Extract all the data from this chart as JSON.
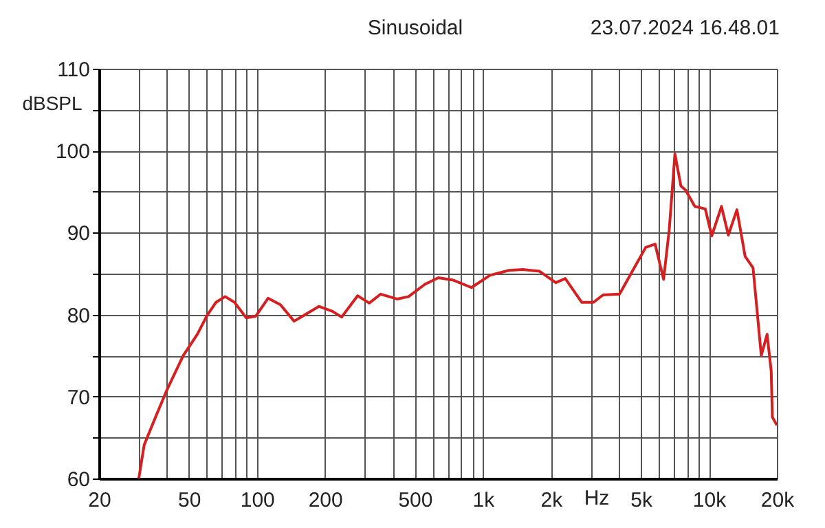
{
  "chart_data": {
    "type": "line",
    "title": "Sinusoidal",
    "xlabel": "Hz",
    "ylabel": "dBSPL",
    "annotations": [
      "23.07.2024 16.48.01"
    ],
    "log": "x",
    "grid": true,
    "marker": "none",
    "line_style": "solid",
    "xlim": [
      20,
      20000
    ],
    "xticks": [
      20,
      {
        "value": 30,
        "label": null
      },
      {
        "value": 40,
        "label": null
      },
      50,
      {
        "value": 60,
        "label": null
      },
      {
        "value": 70,
        "label": null
      },
      {
        "value": 80,
        "label": null
      },
      {
        "value": 90,
        "label": null
      },
      100,
      200,
      {
        "value": 300,
        "label": null
      },
      {
        "value": 400,
        "label": null
      },
      500,
      {
        "value": 600,
        "label": null
      },
      {
        "value": 700,
        "label": null
      },
      {
        "value": 800,
        "label": null
      },
      {
        "value": 900,
        "label": null
      },
      {
        "value": 1000,
        "label": "1k"
      },
      {
        "value": 2000,
        "label": "2k"
      },
      {
        "value": 3000,
        "label": null
      },
      {
        "value": 4000,
        "label": null
      },
      {
        "value": 5000,
        "label": "5k"
      },
      {
        "value": 6000,
        "label": null
      },
      {
        "value": 7000,
        "label": null
      },
      {
        "value": 8000,
        "label": null
      },
      {
        "value": 9000,
        "label": null
      },
      {
        "value": 10000,
        "label": "10k"
      },
      {
        "value": 20000,
        "label": "20k"
      }
    ],
    "ylim": [
      60,
      110
    ],
    "yticks": [
      60,
      {
        "value": 65,
        "label": null
      },
      70,
      {
        "value": 75,
        "label": null
      },
      80,
      {
        "value": 85,
        "label": null
      },
      90,
      {
        "value": 95,
        "label": null
      },
      100,
      {
        "value": 105,
        "label": null
      },
      110
    ],
    "series": [
      {
        "color": "#d42020",
        "x": [
          30,
          31.7,
          35.6,
          40.1,
          47.2,
          54.5,
          59.9,
          65.9,
          72.3,
          79.6,
          89.7,
          98.8,
          112,
          127,
          146,
          159,
          188,
          216,
          237,
          279,
          314,
          353,
          417,
          469,
          554,
          635,
          741,
          890,
          1075,
          1303,
          1503,
          1777,
          2102,
          2315,
          2736,
          3086,
          3400,
          4026,
          4545,
          5254,
          5782,
          6305,
          6680,
          7077,
          7520,
          7885,
          8670,
          9640,
          10300,
          11370,
          12200,
          13310,
          14470,
          15690,
          17060,
          18100,
          18880,
          19100,
          20000
        ],
        "values": [
          60,
          64.1,
          67.5,
          70.9,
          75.0,
          77.6,
          79.8,
          81.5,
          82.2,
          81.5,
          79.6,
          79.8,
          82.0,
          81.2,
          79.2,
          79.8,
          81.0,
          80.4,
          79.7,
          82.3,
          81.4,
          82.5,
          81.9,
          82.2,
          83.7,
          84.5,
          84.2,
          83.3,
          84.8,
          85.4,
          85.5,
          85.3,
          83.9,
          84.4,
          81.5,
          81.5,
          82.4,
          82.5,
          85.1,
          88.2,
          88.6,
          84.3,
          90.4,
          99.6,
          95.7,
          95.2,
          93.2,
          92.9,
          89.6,
          93.2,
          89.7,
          92.8,
          87.1,
          85.7,
          75.0,
          77.6,
          73.1,
          67.5,
          66.5
        ]
      }
    ]
  }
}
